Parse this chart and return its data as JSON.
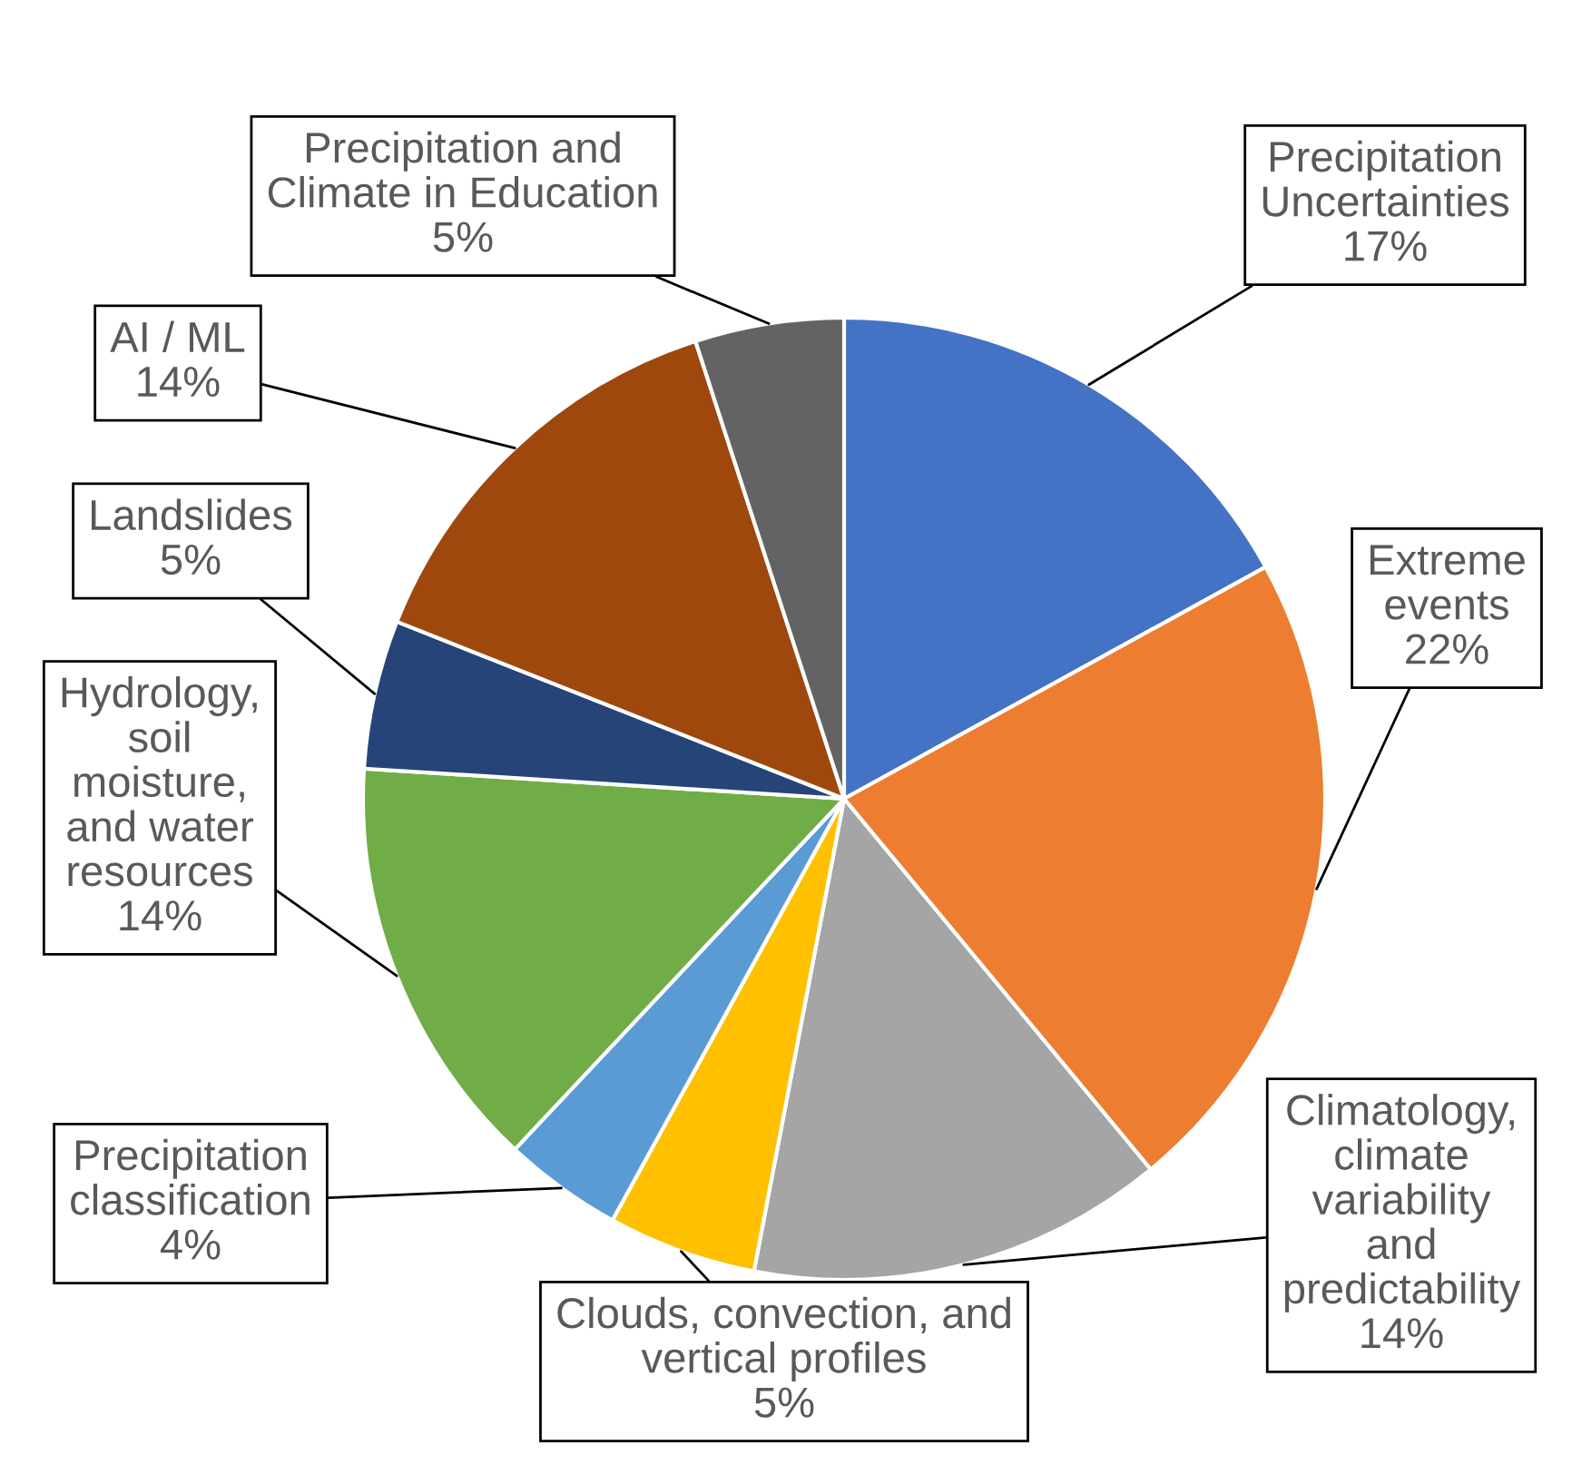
{
  "chart_data": {
    "type": "pie",
    "categories": [
      "Precipitation\nUncertainties",
      "Extreme\nevents",
      "Climatology,\nclimate\nvariability\nand\npredictability",
      "Clouds, convection, and\nvertical profiles",
      "Precipitation\nclassification",
      "Hydrology,\nsoil\nmoisture,\nand water\nresources",
      "Landslides",
      "AI / ML",
      "Precipitation and\nClimate in Education"
    ],
    "values": [
      17,
      22,
      14,
      5,
      4,
      14,
      5,
      14,
      5
    ],
    "value_labels": [
      "17%",
      "22%",
      "14%",
      "5%",
      "4%",
      "14%",
      "5%",
      "14%",
      "5%"
    ],
    "colors": [
      "#4472c4",
      "#ed7d31",
      "#a5a5a5",
      "#ffc000",
      "#5b9bd5",
      "#70ad47",
      "#264478",
      "#9e480e",
      "#636363"
    ],
    "legend": false
  }
}
